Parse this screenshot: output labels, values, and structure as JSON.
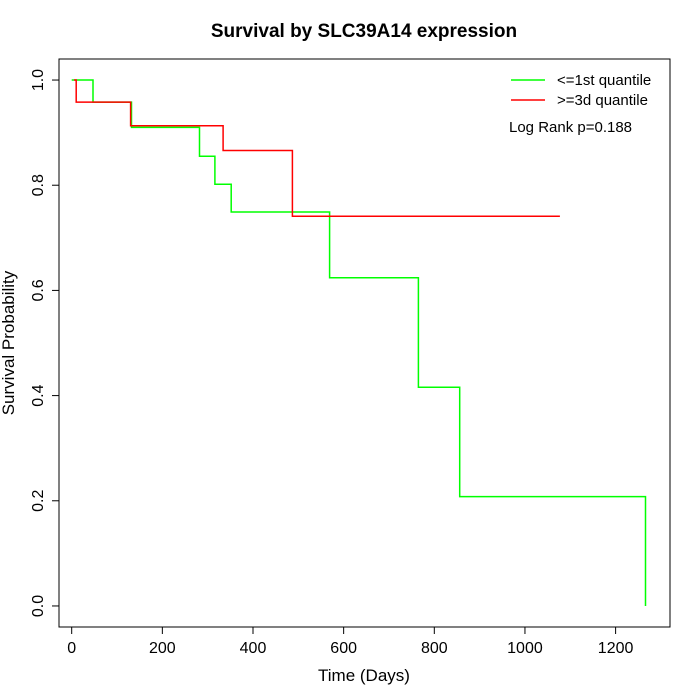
{
  "chart_data": {
    "type": "line",
    "step": true,
    "title": "Survival by SLC39A14 expression",
    "xlabel": "Time (Days)",
    "ylabel": "Survival Probability",
    "xlim": [
      -28,
      1320
    ],
    "ylim": [
      -0.04,
      1.04
    ],
    "xticks": [
      0,
      200,
      400,
      600,
      800,
      1000,
      1200
    ],
    "yticks": [
      0.0,
      0.2,
      0.4,
      0.6,
      0.8,
      1.0
    ],
    "ytick_labels": [
      "0.0",
      "0.2",
      "0.4",
      "0.6",
      "0.8",
      "1.0"
    ],
    "grid": false,
    "legend_position": "top-right",
    "annotation": "Log Rank p=0.188",
    "series": [
      {
        "name": "<=1st quantile",
        "color": "#00ff00",
        "points": [
          [
            0,
            1.0
          ],
          [
            47,
            1.0
          ],
          [
            47,
            0.958
          ],
          [
            132,
            0.958
          ],
          [
            132,
            0.91
          ],
          [
            282,
            0.91
          ],
          [
            282,
            0.855
          ],
          [
            316,
            0.855
          ],
          [
            316,
            0.802
          ],
          [
            352,
            0.802
          ],
          [
            352,
            0.749
          ],
          [
            569,
            0.749
          ],
          [
            569,
            0.624
          ],
          [
            765,
            0.624
          ],
          [
            765,
            0.416
          ],
          [
            856,
            0.416
          ],
          [
            856,
            0.208
          ],
          [
            1266,
            0.208
          ],
          [
            1266,
            0.0
          ]
        ]
      },
      {
        "name": ">=3d quantile",
        "color": "#ff0000",
        "points": [
          [
            5,
            1.0
          ],
          [
            10,
            1.0
          ],
          [
            10,
            0.958
          ],
          [
            130,
            0.958
          ],
          [
            130,
            0.913
          ],
          [
            334,
            0.913
          ],
          [
            334,
            0.866
          ],
          [
            487,
            0.866
          ],
          [
            487,
            0.741
          ],
          [
            1077,
            0.741
          ]
        ]
      }
    ]
  }
}
